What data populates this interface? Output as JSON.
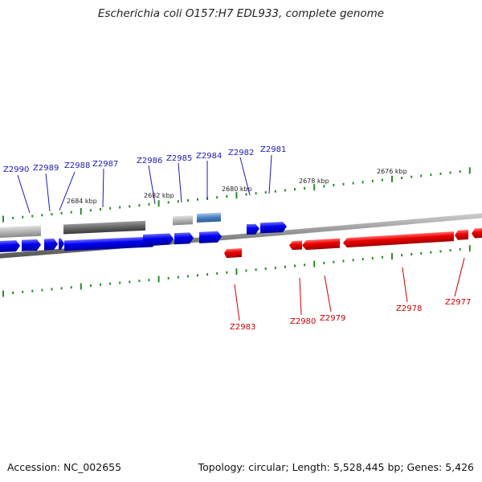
{
  "title": "Escherichia coli O157:H7 EDL933, complete genome",
  "accession": "Accession: NC_002655",
  "summary": "Topology: circular; Length: 5,528,445 bp; Genes: 5,426",
  "colors": {
    "forward_gene": "#0000f0",
    "reverse_gene": "#ee0000",
    "forward_label": "#1a1ab4",
    "reverse_label": "#c80000",
    "pseudo_gene": "#b4b4b4",
    "dark_gene": "#666666",
    "highlight_gene": "#4a82c0",
    "tick": "#2a8a2a",
    "backbone": "#888888"
  },
  "kbp_labels": [
    "2684 kbp",
    "2682 kbp",
    "2680 kbp",
    "2678 kbp",
    "2676 kbp"
  ],
  "forward_gene_labels": [
    "Z2990",
    "Z2989",
    "Z2988",
    "Z2987",
    "Z2986",
    "Z2985",
    "Z2984",
    "Z2982",
    "Z2981"
  ],
  "reverse_gene_labels": [
    "Z2983",
    "Z2980",
    "Z2979",
    "Z2978",
    "Z2977"
  ]
}
